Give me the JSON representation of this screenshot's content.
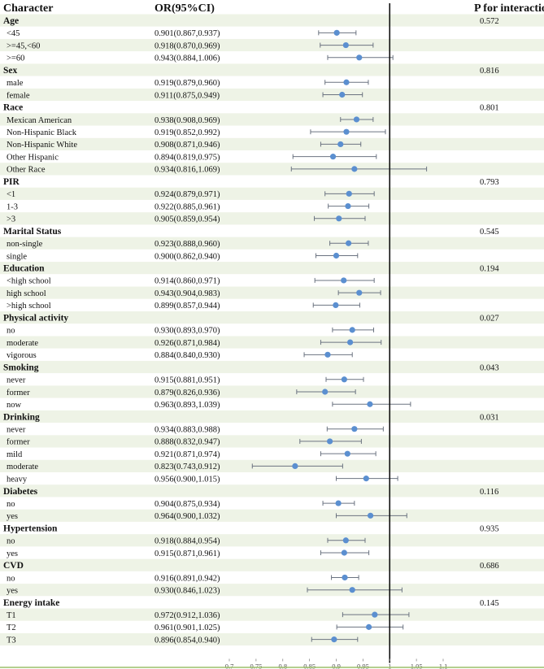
{
  "chart_data": {
    "type": "forest",
    "headers": {
      "character": "Character",
      "or": "OR(95%CI)",
      "p": "P for interaction"
    },
    "x_axis": {
      "range": [
        0.7,
        1.1
      ],
      "ticks": [
        0.7,
        0.75,
        0.8,
        0.85,
        0.9,
        0.95,
        1,
        1.05,
        1.1
      ],
      "tick_labels": [
        "0.7",
        "0.75",
        "0.8",
        "0.85",
        "0.9",
        "0.95",
        "1",
        "1.05",
        "1.1"
      ],
      "reference_line": 1
    },
    "colors": {
      "point": "#5b8fd0",
      "ci_line": "#6b7380",
      "band_even": "#eef3e6",
      "band_odd": "#ffffff",
      "ref_line": "#111111",
      "bottom_line": "#9bbf6a"
    },
    "groups": [
      {
        "name": "Age",
        "p": "0.572",
        "rows": [
          {
            "label": "<45",
            "or_text": "0.901(0.867,0.937)",
            "or": 0.901,
            "lo": 0.867,
            "hi": 0.937
          },
          {
            "label": ">=45,<60",
            "or_text": "0.918(0.870,0.969)",
            "or": 0.918,
            "lo": 0.87,
            "hi": 0.969
          },
          {
            "label": ">=60",
            "or_text": "0.943(0.884,1.006)",
            "or": 0.943,
            "lo": 0.884,
            "hi": 1.006
          }
        ]
      },
      {
        "name": "Sex",
        "p": "0.816",
        "rows": [
          {
            "label": "male",
            "or_text": "0.919(0.879,0.960)",
            "or": 0.919,
            "lo": 0.879,
            "hi": 0.96
          },
          {
            "label": "female",
            "or_text": "0.911(0.875,0.949)",
            "or": 0.911,
            "lo": 0.875,
            "hi": 0.949
          }
        ]
      },
      {
        "name": "Race",
        "p": "0.801",
        "rows": [
          {
            "label": "Mexican American",
            "or_text": "0.938(0.908,0.969)",
            "or": 0.938,
            "lo": 0.908,
            "hi": 0.969
          },
          {
            "label": "Non-Hispanic Black",
            "or_text": "0.919(0.852,0.992)",
            "or": 0.919,
            "lo": 0.852,
            "hi": 0.992
          },
          {
            "label": "Non-Hispanic White",
            "or_text": "0.908(0.871,0.946)",
            "or": 0.908,
            "lo": 0.871,
            "hi": 0.946
          },
          {
            "label": "Other Hispanic",
            "or_text": "0.894(0.819,0.975)",
            "or": 0.894,
            "lo": 0.819,
            "hi": 0.975
          },
          {
            "label": "Other Race",
            "or_text": "0.934(0.816,1.069)",
            "or": 0.934,
            "lo": 0.816,
            "hi": 1.069
          }
        ]
      },
      {
        "name": "PIR",
        "p": "0.793",
        "rows": [
          {
            "label": "<1",
            "or_text": "0.924(0.879,0.971)",
            "or": 0.924,
            "lo": 0.879,
            "hi": 0.971
          },
          {
            "label": "1-3",
            "or_text": "0.922(0.885,0.961)",
            "or": 0.922,
            "lo": 0.885,
            "hi": 0.961
          },
          {
            "label": ">3",
            "or_text": "0.905(0.859,0.954)",
            "or": 0.905,
            "lo": 0.859,
            "hi": 0.954
          }
        ]
      },
      {
        "name": "Marital Status",
        "p": "0.545",
        "rows": [
          {
            "label": "non-single",
            "or_text": "0.923(0.888,0.960)",
            "or": 0.923,
            "lo": 0.888,
            "hi": 0.96
          },
          {
            "label": "single",
            "or_text": "0.900(0.862,0.940)",
            "or": 0.9,
            "lo": 0.862,
            "hi": 0.94
          }
        ]
      },
      {
        "name": "Education",
        "p": "0.194",
        "rows": [
          {
            "label": "<high school",
            "or_text": "0.914(0.860,0.971)",
            "or": 0.914,
            "lo": 0.86,
            "hi": 0.971
          },
          {
            "label": "high school",
            "or_text": "0.943(0.904,0.983)",
            "or": 0.943,
            "lo": 0.904,
            "hi": 0.983
          },
          {
            "label": ">high school",
            "or_text": "0.899(0.857,0.944)",
            "or": 0.899,
            "lo": 0.857,
            "hi": 0.944
          }
        ]
      },
      {
        "name": "Physical activity",
        "p": "0.027",
        "rows": [
          {
            "label": "no",
            "or_text": "0.930(0.893,0.970)",
            "or": 0.93,
            "lo": 0.893,
            "hi": 0.97
          },
          {
            "label": "moderate",
            "or_text": "0.926(0.871,0.984)",
            "or": 0.926,
            "lo": 0.871,
            "hi": 0.984
          },
          {
            "label": "vigorous",
            "or_text": "0.884(0.840,0.930)",
            "or": 0.884,
            "lo": 0.84,
            "hi": 0.93
          }
        ]
      },
      {
        "name": "Smoking",
        "p": "0.043",
        "rows": [
          {
            "label": "never",
            "or_text": "0.915(0.881,0.951)",
            "or": 0.915,
            "lo": 0.881,
            "hi": 0.951
          },
          {
            "label": "former",
            "or_text": "0.879(0.826,0.936)",
            "or": 0.879,
            "lo": 0.826,
            "hi": 0.936
          },
          {
            "label": "now",
            "or_text": "0.963(0.893,1.039)",
            "or": 0.963,
            "lo": 0.893,
            "hi": 1.039
          }
        ]
      },
      {
        "name": "Drinking",
        "p": "0.031",
        "rows": [
          {
            "label": "never",
            "or_text": "0.934(0.883,0.988)",
            "or": 0.934,
            "lo": 0.883,
            "hi": 0.988
          },
          {
            "label": "former",
            "or_text": "0.888(0.832,0.947)",
            "or": 0.888,
            "lo": 0.832,
            "hi": 0.947
          },
          {
            "label": "mild",
            "or_text": "0.921(0.871,0.974)",
            "or": 0.921,
            "lo": 0.871,
            "hi": 0.974
          },
          {
            "label": "moderate",
            "or_text": "0.823(0.743,0.912)",
            "or": 0.823,
            "lo": 0.743,
            "hi": 0.912
          },
          {
            "label": "heavy",
            "or_text": "0.956(0.900,1.015)",
            "or": 0.956,
            "lo": 0.9,
            "hi": 1.015
          }
        ]
      },
      {
        "name": "Diabetes",
        "p": "0.116",
        "rows": [
          {
            "label": "no",
            "or_text": "0.904(0.875,0.934)",
            "or": 0.904,
            "lo": 0.875,
            "hi": 0.934
          },
          {
            "label": "yes",
            "or_text": "0.964(0.900,1.032)",
            "or": 0.964,
            "lo": 0.9,
            "hi": 1.032
          }
        ]
      },
      {
        "name": "Hypertension",
        "p": "0.935",
        "rows": [
          {
            "label": "no",
            "or_text": "0.918(0.884,0.954)",
            "or": 0.918,
            "lo": 0.884,
            "hi": 0.954
          },
          {
            "label": "yes",
            "or_text": "0.915(0.871,0.961)",
            "or": 0.915,
            "lo": 0.871,
            "hi": 0.961
          }
        ]
      },
      {
        "name": "CVD",
        "p": "0.686",
        "rows": [
          {
            "label": "no",
            "or_text": "0.916(0.891,0.942)",
            "or": 0.916,
            "lo": 0.891,
            "hi": 0.942
          },
          {
            "label": "yes",
            "or_text": "0.930(0.846,1.023)",
            "or": 0.93,
            "lo": 0.846,
            "hi": 1.023
          }
        ]
      },
      {
        "name": "Energy intake",
        "p": "0.145",
        "rows": [
          {
            "label": "T1",
            "or_text": "0.972(0.912,1.036)",
            "or": 0.972,
            "lo": 0.912,
            "hi": 1.036
          },
          {
            "label": "T2",
            "or_text": "0.961(0.901,1.025)",
            "or": 0.961,
            "lo": 0.901,
            "hi": 1.025
          },
          {
            "label": "T3",
            "or_text": "0.896(0.854,0.940)",
            "or": 0.896,
            "lo": 0.854,
            "hi": 0.94
          }
        ]
      }
    ]
  }
}
